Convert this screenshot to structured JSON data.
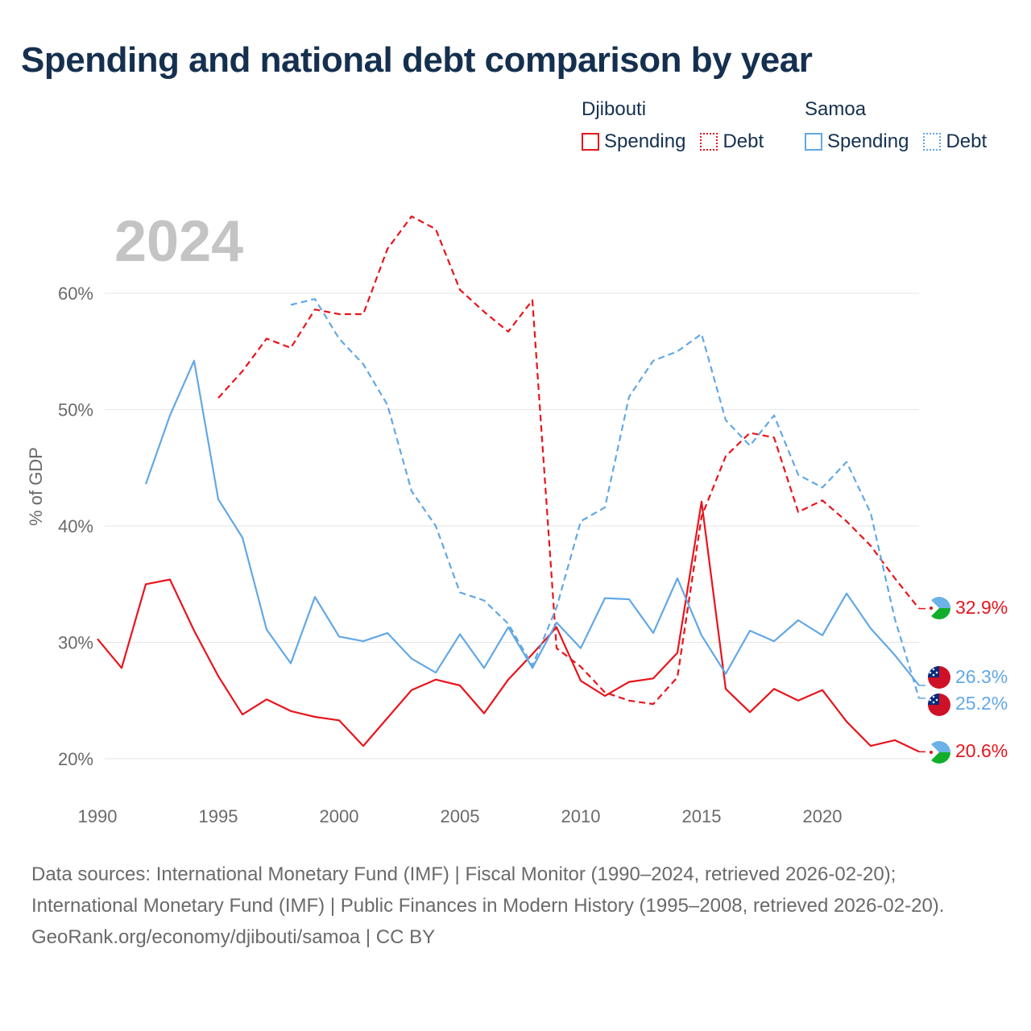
{
  "title": "Spending and national debt comparison by year",
  "legend": {
    "groups": [
      {
        "name": "Djibouti",
        "color": "#e8141c",
        "items": [
          {
            "label": "Spending",
            "style": "solid"
          },
          {
            "label": "Debt",
            "style": "dotted"
          }
        ]
      },
      {
        "name": "Samoa",
        "color": "#62a8e5",
        "items": [
          {
            "label": "Spending",
            "style": "solid"
          },
          {
            "label": "Debt",
            "style": "dotted"
          }
        ]
      }
    ]
  },
  "chart_data": {
    "type": "line",
    "watermark_year": "2024",
    "ylabel": "% of GDP",
    "xlabel": "",
    "xlim": [
      1990,
      2024
    ],
    "ylim": [
      17,
      65
    ],
    "x_ticks": [
      1990,
      1995,
      2000,
      2005,
      2010,
      2015,
      2020
    ],
    "y_ticks": [
      20,
      30,
      40,
      50,
      60
    ],
    "y_tick_labels": [
      "20%",
      "30%",
      "40%",
      "50%",
      "60%"
    ],
    "grid": true,
    "series": [
      {
        "name": "Djibouti Spending",
        "country": "Djibouti",
        "color": "#e8141c",
        "dash": "solid",
        "start_year": 1990,
        "values": [
          30.3,
          27.8,
          35.0,
          35.4,
          31.0,
          27.1,
          23.8,
          25.1,
          24.1,
          23.6,
          23.3,
          21.1,
          23.5,
          25.9,
          26.8,
          26.3,
          23.9,
          26.8,
          29.0,
          31.3,
          26.7,
          25.4,
          26.6,
          26.9,
          29.1,
          42.1,
          26.0,
          24.0,
          26.0,
          25.0,
          25.9,
          23.2,
          21.1,
          21.6,
          20.6
        ],
        "end_label": "20.6%"
      },
      {
        "name": "Djibouti Debt",
        "country": "Djibouti",
        "color": "#e8141c",
        "dash": "dashed",
        "start_year": 1995,
        "values": [
          51.0,
          53.3,
          56.1,
          55.3,
          58.6,
          58.2,
          58.2,
          63.8,
          66.6,
          65.5,
          60.3,
          58.4,
          56.7,
          59.4,
          29.5,
          27.9,
          25.7,
          25.0,
          24.7,
          27.0,
          40.8,
          46.0,
          48.0,
          47.6,
          41.2,
          42.2,
          40.4,
          38.3,
          35.5,
          32.9
        ],
        "end_label": "32.9%"
      },
      {
        "name": "Samoa Spending",
        "country": "Samoa",
        "color": "#62a8e5",
        "dash": "solid",
        "start_year": 1992,
        "values": [
          43.6,
          49.5,
          54.2,
          42.3,
          39.0,
          31.1,
          28.2,
          33.9,
          30.5,
          30.1,
          30.8,
          28.6,
          27.4,
          30.7,
          27.8,
          31.3,
          27.8,
          31.7,
          29.5,
          33.8,
          33.7,
          30.8,
          35.5,
          30.6,
          27.3,
          31.0,
          30.1,
          31.9,
          30.6,
          34.2,
          31.2,
          28.9,
          26.3
        ],
        "end_label": "26.3%"
      },
      {
        "name": "Samoa Debt",
        "country": "Samoa",
        "color": "#62a8e5",
        "dash": "dashed",
        "start_year": 1998,
        "values": [
          59.0,
          59.5,
          56.1,
          53.9,
          50.4,
          43.0,
          40.0,
          34.3,
          33.6,
          31.6,
          28.0,
          33.0,
          40.4,
          41.6,
          51.1,
          54.2,
          55.0,
          56.5,
          49.1,
          46.9,
          49.5,
          44.4,
          43.3,
          45.5,
          41.1,
          32.0,
          25.2
        ],
        "end_label": "25.2%"
      }
    ]
  },
  "footer": {
    "sources": "Data sources: International Monetary Fund (IMF) | Fiscal Monitor (1990–2024, retrieved 2026-02-20); International Monetary Fund (IMF) | Public Finances in Modern History (1995–2008, retrieved 2026-02-20).",
    "credit": "GeoRank.org/economy/djibouti/samoa | CC BY"
  }
}
